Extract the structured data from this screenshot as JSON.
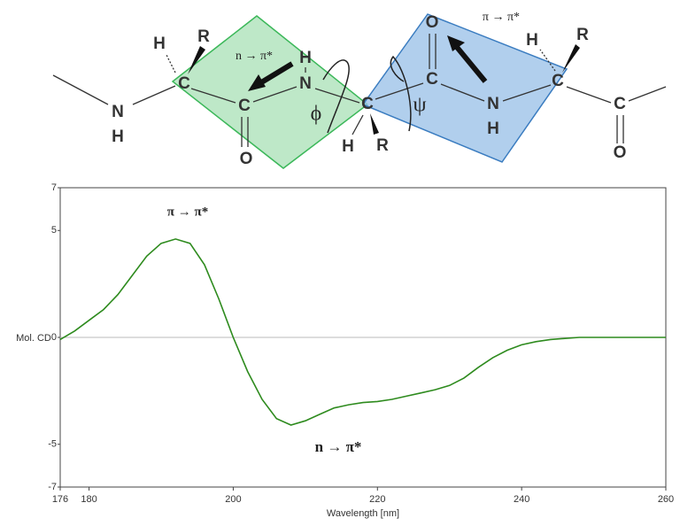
{
  "diagram": {
    "atoms": [
      "N",
      "H",
      "H",
      "R",
      "C",
      "C",
      "O",
      "H",
      "N",
      "C",
      "H",
      "R",
      "O",
      "C",
      "N",
      "H",
      "H",
      "R",
      "C",
      "C",
      "O"
    ],
    "annotations": [
      "n → π*",
      "π → π*",
      "ϕ",
      "ψ"
    ]
  },
  "chart_data": {
    "type": "line",
    "xlabel": "Wavelength [nm]",
    "ylabel": "Mol. CD",
    "annotations": [
      "π → π*",
      "n → π*"
    ],
    "x": [
      176,
      178,
      180,
      182,
      184,
      186,
      188,
      190,
      192,
      194,
      196,
      198,
      200,
      202,
      204,
      206,
      208,
      210,
      212,
      214,
      216,
      218,
      220,
      222,
      224,
      226,
      228,
      230,
      232,
      234,
      236,
      238,
      240,
      242,
      244,
      246,
      248,
      250,
      252,
      254,
      256,
      258,
      260
    ],
    "series": [
      {
        "name": "Mol. CD",
        "color": "#2e8b1e",
        "values": [
          -0.1,
          0.3,
          0.8,
          1.3,
          2.0,
          2.9,
          3.8,
          4.4,
          4.6,
          4.4,
          3.4,
          1.8,
          0.0,
          -1.6,
          -2.9,
          -3.8,
          -4.1,
          -3.9,
          -3.6,
          -3.3,
          -3.15,
          -3.05,
          -3.0,
          -2.9,
          -2.75,
          -2.6,
          -2.45,
          -2.25,
          -1.9,
          -1.4,
          -0.95,
          -0.6,
          -0.35,
          -0.2,
          -0.1,
          -0.05,
          0,
          0,
          0,
          0,
          0,
          0,
          0
        ]
      }
    ],
    "xlim": [
      176,
      260
    ],
    "xticks": [
      176,
      180,
      200,
      220,
      240,
      260
    ],
    "ylim": [
      -7,
      7
    ],
    "yticks": [
      7,
      5,
      0,
      -5,
      -7
    ],
    "zero_line": true
  }
}
